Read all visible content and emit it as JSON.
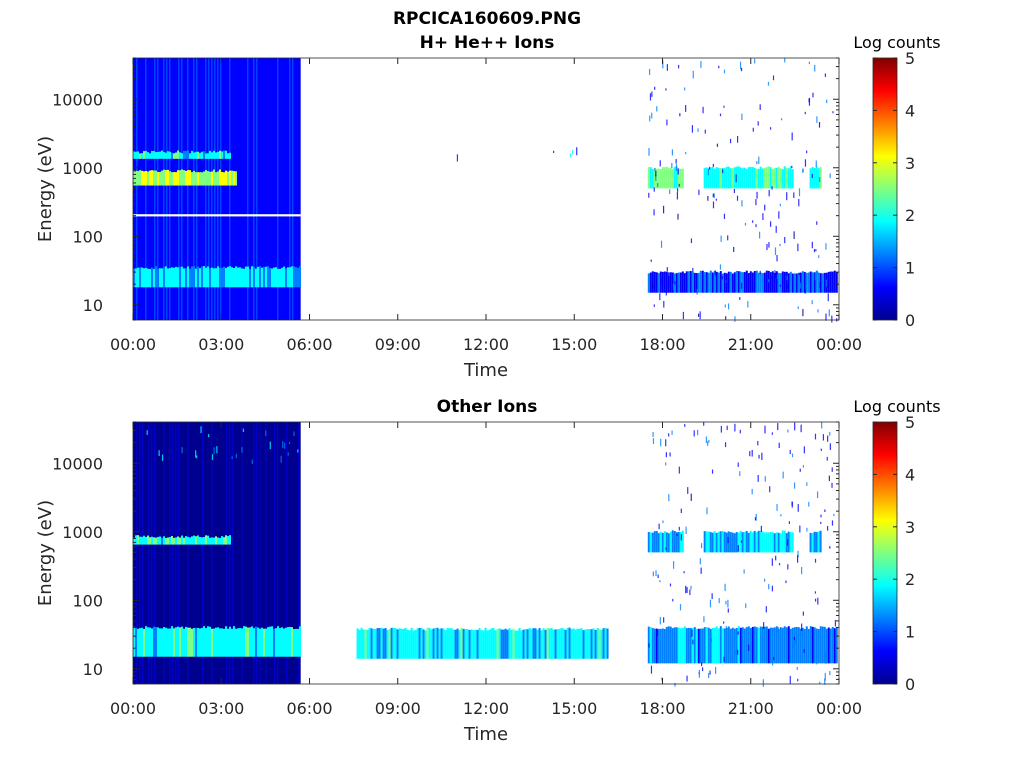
{
  "figure": {
    "title_line1": "RPCICA160609.PNG",
    "title_line2": "H+ He++ Ions",
    "title_bottom": "Other Ions"
  },
  "colormap": [
    "#00008f",
    "#0000ff",
    "#0080ff",
    "#00ffff",
    "#80ff80",
    "#ffff00",
    "#ff8000",
    "#ff0000",
    "#800000"
  ],
  "chart_data": [
    {
      "type": "heatmap",
      "title": "H+ He++ Ions",
      "xlabel": "Time",
      "ylabel": "Energy (eV)",
      "xticks": [
        "00:00",
        "03:00",
        "06:00",
        "09:00",
        "12:00",
        "15:00",
        "18:00",
        "21:00",
        "00:00"
      ],
      "xlim_hours": [
        0,
        24
      ],
      "yscale": "log",
      "ylim": [
        6,
        40000
      ],
      "yticks": [
        10,
        100,
        1000,
        10000
      ],
      "ytick_labels": [
        "10",
        "100",
        "1000",
        "10000"
      ],
      "colorbar": {
        "label": "Log counts",
        "range": [
          0,
          5
        ],
        "ticks": [
          "0",
          "1",
          "2",
          "3",
          "4",
          "5"
        ]
      },
      "features": [
        {
          "name": "dense-background",
          "t_start": 0.0,
          "t_end": 5.7,
          "e_low": 6,
          "e_high": 40000,
          "level": 0.9
        },
        {
          "name": "beam-700eV",
          "t_start": 0.0,
          "t_end": 3.5,
          "e_low": 550,
          "e_high": 900,
          "level": 2.7
        },
        {
          "name": "beam-1500eV",
          "t_start": 0.0,
          "t_end": 3.3,
          "e_low": 1350,
          "e_high": 1700,
          "level": 1.9
        },
        {
          "name": "low-energy-band",
          "t_start": 0.0,
          "t_end": 5.7,
          "e_low": 18,
          "e_high": 35,
          "level": 1.6
        },
        {
          "name": "data-gap-line",
          "t_start": 0.0,
          "t_end": 5.7,
          "e_low": 195,
          "e_high": 210,
          "level": -1
        },
        {
          "name": "sparse-beam",
          "t_start": 11.0,
          "t_end": 16.1,
          "e_low": 1500,
          "e_high": 2000,
          "level": 0.6
        },
        {
          "name": "late-beam-1",
          "t_start": 17.5,
          "t_end": 18.7,
          "e_low": 500,
          "e_high": 1000,
          "level": 2.2
        },
        {
          "name": "late-beam-2",
          "t_start": 19.4,
          "t_end": 22.4,
          "e_low": 500,
          "e_high": 1000,
          "level": 2.0
        },
        {
          "name": "late-beam-3",
          "t_start": 23.0,
          "t_end": 23.4,
          "e_low": 500,
          "e_high": 1000,
          "level": 1.8
        },
        {
          "name": "late-low-band",
          "t_start": 17.5,
          "t_end": 23.9,
          "e_low": 15,
          "e_high": 30,
          "level": 0.8
        },
        {
          "name": "late-sparse",
          "t_start": 17.5,
          "t_end": 23.9,
          "e_low": 6,
          "e_high": 40000,
          "level": 0.2
        }
      ]
    },
    {
      "type": "heatmap",
      "title": "Other Ions",
      "xlabel": "Time",
      "ylabel": "Energy (eV)",
      "xticks": [
        "00:00",
        "03:00",
        "06:00",
        "09:00",
        "12:00",
        "15:00",
        "18:00",
        "21:00",
        "00:00"
      ],
      "xlim_hours": [
        0,
        24
      ],
      "yscale": "log",
      "ylim": [
        6,
        40000
      ],
      "yticks": [
        10,
        100,
        1000,
        10000
      ],
      "ytick_labels": [
        "10",
        "100",
        "1000",
        "10000"
      ],
      "colorbar": {
        "label": "Log counts",
        "range": [
          0,
          5
        ],
        "ticks": [
          "0",
          "1",
          "2",
          "3",
          "4",
          "5"
        ]
      },
      "features": [
        {
          "name": "dense-background",
          "t_start": 0.0,
          "t_end": 5.7,
          "e_low": 6,
          "e_high": 40000,
          "level": 0.3
        },
        {
          "name": "high-energy-speckle",
          "t_start": 0.0,
          "t_end": 5.7,
          "e_low": 11000,
          "e_high": 40000,
          "level": 0.9
        },
        {
          "name": "beam-750eV",
          "t_start": 0.0,
          "t_end": 3.3,
          "e_low": 650,
          "e_high": 850,
          "level": 2.0
        },
        {
          "name": "low-energy-band",
          "t_start": 0.0,
          "t_end": 5.7,
          "e_low": 15,
          "e_high": 40,
          "level": 1.9
        },
        {
          "name": "mid-band",
          "t_start": 7.6,
          "t_end": 16.1,
          "e_low": 14,
          "e_high": 38,
          "level": 1.8
        },
        {
          "name": "late-beam-1",
          "t_start": 17.5,
          "t_end": 18.7,
          "e_low": 500,
          "e_high": 1000,
          "level": 1.5
        },
        {
          "name": "late-beam-2",
          "t_start": 19.4,
          "t_end": 22.4,
          "e_low": 500,
          "e_high": 1000,
          "level": 1.6
        },
        {
          "name": "late-beam-3",
          "t_start": 23.0,
          "t_end": 23.4,
          "e_low": 500,
          "e_high": 1000,
          "level": 1.4
        },
        {
          "name": "late-low-band",
          "t_start": 17.5,
          "t_end": 23.9,
          "e_low": 12,
          "e_high": 40,
          "level": 1.3
        },
        {
          "name": "late-sparse",
          "t_start": 17.5,
          "t_end": 23.9,
          "e_low": 6,
          "e_high": 40000,
          "level": 0.3
        }
      ]
    }
  ]
}
